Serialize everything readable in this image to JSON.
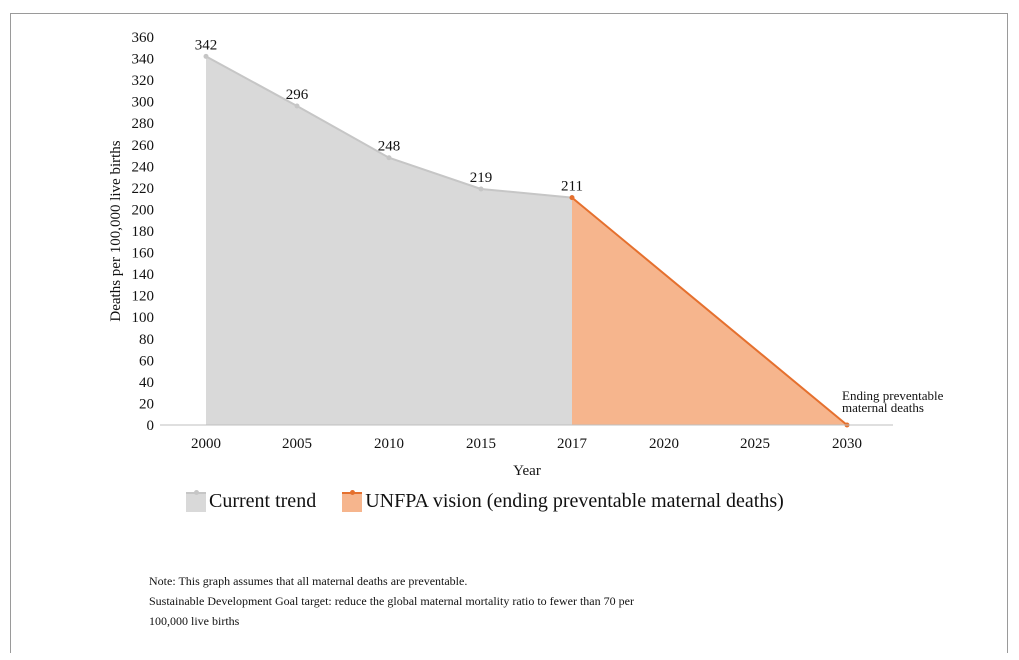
{
  "chart_data": {
    "type": "area",
    "ylabel": "Deaths per 100,000 live births",
    "xlabel": "Year",
    "ylim": [
      0,
      360
    ],
    "yticks": [
      0,
      20,
      40,
      60,
      80,
      100,
      120,
      140,
      160,
      180,
      200,
      220,
      240,
      260,
      280,
      300,
      320,
      340,
      360
    ],
    "categories": [
      "2000",
      "2005",
      "2010",
      "2015",
      "2017",
      "2020",
      "2025",
      "2030"
    ],
    "series": [
      {
        "name": "Current trend",
        "color": "#d9d9d9",
        "line_color": "#c6c6c6",
        "points": [
          {
            "x": "2000",
            "y": 342
          },
          {
            "x": "2005",
            "y": 296
          },
          {
            "x": "2010",
            "y": 248
          },
          {
            "x": "2015",
            "y": 219
          },
          {
            "x": "2017",
            "y": 211
          }
        ],
        "labels": [
          "342",
          "296",
          "248",
          "219",
          "211"
        ]
      },
      {
        "name": "UNFPA vision (ending preventable maternal deaths)",
        "color": "#f6b58d",
        "line_color": "#e5702e",
        "points": [
          {
            "x": "2017",
            "y": 211
          },
          {
            "x": "2030",
            "y": 0
          }
        ]
      }
    ],
    "annotation": {
      "x": "2030",
      "y": 0,
      "lines": [
        "Ending preventable",
        "maternal deaths"
      ]
    },
    "grid": false,
    "legend_position": "bottom-left"
  },
  "legend": {
    "current": "Current trend",
    "vision": "UNFPA vision (ending preventable maternal deaths)"
  },
  "notes": {
    "line1": "Note: This graph assumes that all maternal deaths are preventable.",
    "line2": "Sustainable Development Goal target: reduce the global maternal mortality ratio to fewer than 70 per",
    "line3": "100,000 live births"
  }
}
